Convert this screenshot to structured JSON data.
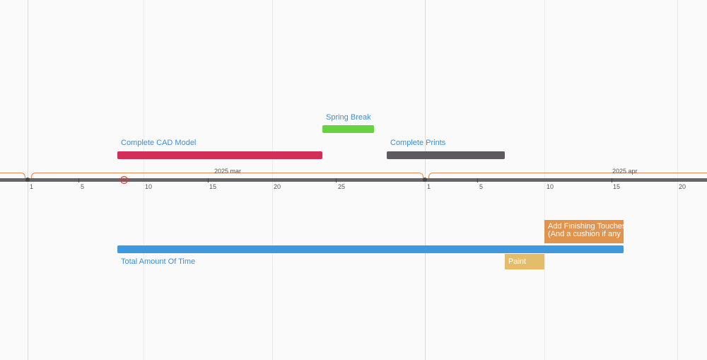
{
  "timeline": {
    "months": [
      {
        "label": "2025 mar"
      },
      {
        "label": "2025 apr"
      }
    ],
    "ticks": [
      "1",
      "5",
      "10",
      "15",
      "20",
      "25",
      "1",
      "5",
      "10",
      "15",
      "20"
    ]
  },
  "events": {
    "spring_break": {
      "label": "Spring Break",
      "color": "#6ad146"
    },
    "cad_model": {
      "label": "Complete CAD Model",
      "color": "#d12f57"
    },
    "prints": {
      "label": "Complete Prints",
      "color": "#5e5a5f"
    },
    "total_time": {
      "label": "Total Amount Of Time",
      "color": "#3f99de"
    },
    "finishing": {
      "label": "Add Finishing Touches\n(And a cushion if any",
      "color": "#e0944d"
    },
    "paint": {
      "label": "Paint",
      "color": "#e3bd6a"
    }
  },
  "colors": {
    "today_marker": "#e03c3c",
    "month_brace": "#e08a5a",
    "axis": "#666666"
  }
}
